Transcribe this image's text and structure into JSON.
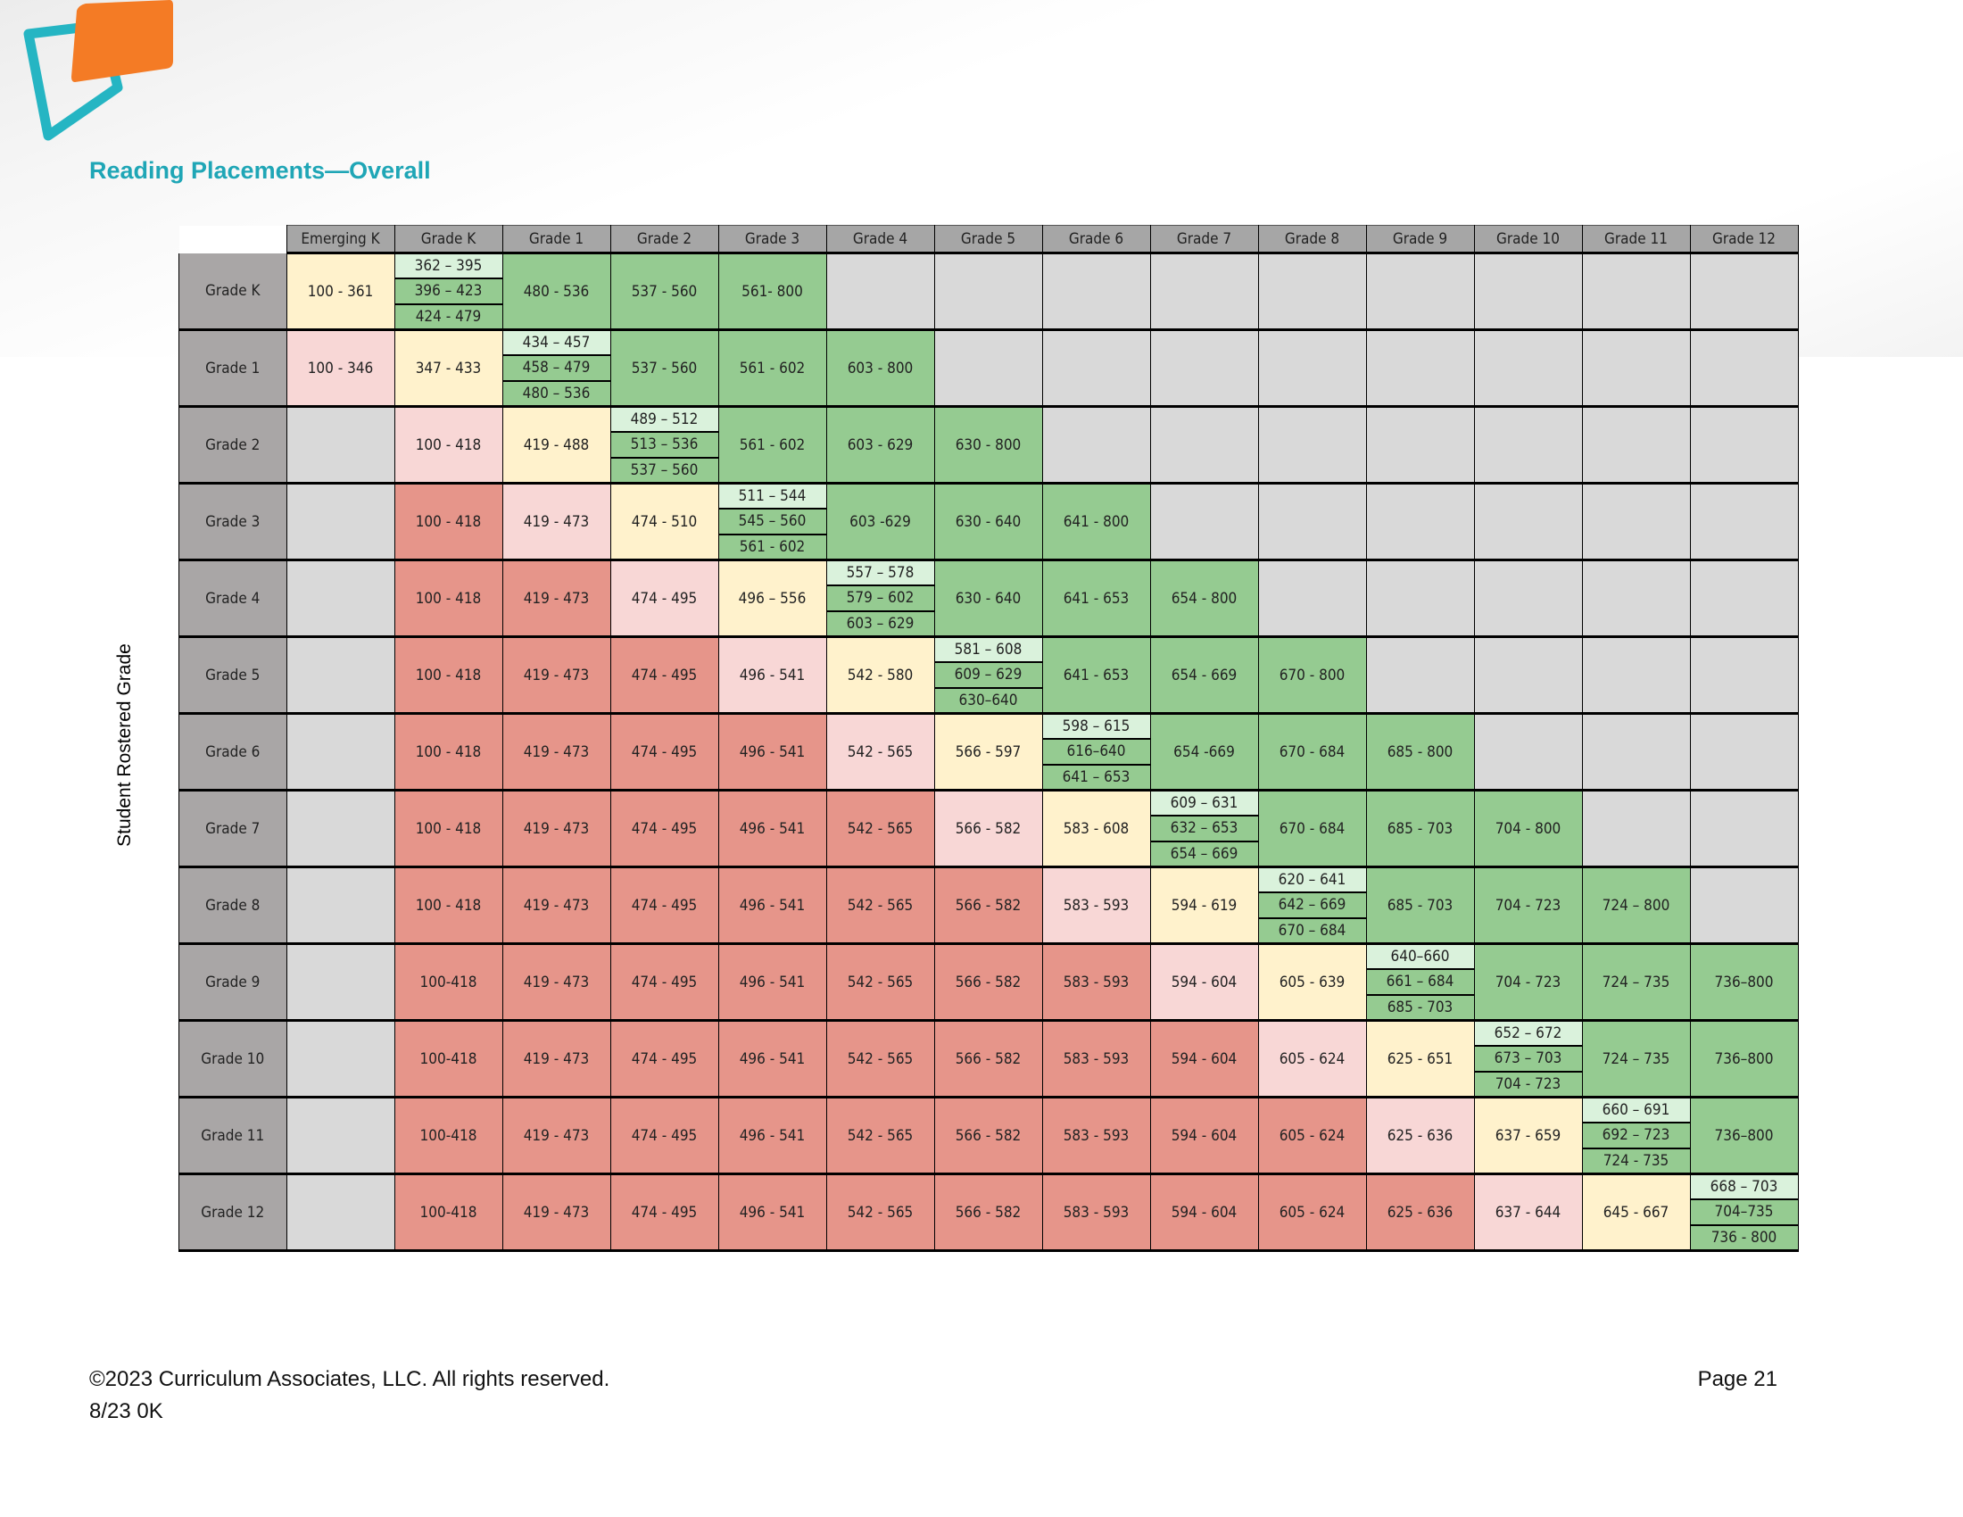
{
  "title": "Reading Placements—Overall",
  "y_axis_label": "Student Rostered Grade",
  "footer": {
    "copyright": "©2023 Curriculum Associates, LLC. All rights reserved.",
    "code": "8/23 0K",
    "page": "Page 21"
  },
  "logo": {
    "icon": "curriculum-associates-logo",
    "colors": {
      "teal": "#25b5c3",
      "orange": "#f47b25"
    }
  },
  "colors": {
    "r": "#e6958a",
    "p": "#f8d7d6",
    "y": "#fff2cc",
    "g": "#95cb91",
    "x": "#d9d9d9",
    "light_green": "#daf2dc",
    "header": "#a6a6a6"
  },
  "columns": [
    "Emerging K",
    "Grade K",
    "Grade 1",
    "Grade 2",
    "Grade 3",
    "Grade 4",
    "Grade 5",
    "Grade 6",
    "Grade 7",
    "Grade 8",
    "Grade 9",
    "Grade 10",
    "Grade 11",
    "Grade 12"
  ],
  "rows": [
    {
      "label": "Grade K",
      "cells": [
        [
          "y",
          "100 - 361"
        ],
        [
          "s",
          [
            "362 – 395",
            "396 – 423",
            "424 - 479"
          ]
        ],
        [
          "g",
          "480 - 536"
        ],
        [
          "g",
          "537 - 560"
        ],
        [
          "g",
          "561- 800"
        ],
        [
          "x"
        ],
        [
          "x"
        ],
        [
          "x"
        ],
        [
          "x"
        ],
        [
          "x"
        ],
        [
          "x"
        ],
        [
          "x"
        ],
        [
          "x"
        ],
        [
          "x"
        ]
      ]
    },
    {
      "label": "Grade 1",
      "cells": [
        [
          "p",
          "100 - 346"
        ],
        [
          "y",
          "347 - 433"
        ],
        [
          "s",
          [
            "434 – 457",
            "458 – 479",
            "480 – 536"
          ]
        ],
        [
          "g",
          "537 - 560"
        ],
        [
          "g",
          "561 - 602"
        ],
        [
          "g",
          "603 - 800"
        ],
        [
          "x"
        ],
        [
          "x"
        ],
        [
          "x"
        ],
        [
          "x"
        ],
        [
          "x"
        ],
        [
          "x"
        ],
        [
          "x"
        ],
        [
          "x"
        ]
      ]
    },
    {
      "label": "Grade 2",
      "cells": [
        [
          "x"
        ],
        [
          "p",
          "100 - 418"
        ],
        [
          "y",
          "419 - 488"
        ],
        [
          "s",
          [
            "489 – 512",
            "513 – 536",
            "537 – 560"
          ]
        ],
        [
          "g",
          "561 - 602"
        ],
        [
          "g",
          "603 - 629"
        ],
        [
          "g",
          "630 - 800"
        ],
        [
          "x"
        ],
        [
          "x"
        ],
        [
          "x"
        ],
        [
          "x"
        ],
        [
          "x"
        ],
        [
          "x"
        ],
        [
          "x"
        ]
      ]
    },
    {
      "label": "Grade 3",
      "cells": [
        [
          "x"
        ],
        [
          "r",
          "100 - 418"
        ],
        [
          "p",
          "419 - 473"
        ],
        [
          "y",
          "474 - 510"
        ],
        [
          "s",
          [
            "511 – 544",
            "545 – 560",
            "561 - 602"
          ]
        ],
        [
          "g",
          "603 -629"
        ],
        [
          "g",
          "630 - 640"
        ],
        [
          "g",
          "641 - 800"
        ],
        [
          "x"
        ],
        [
          "x"
        ],
        [
          "x"
        ],
        [
          "x"
        ],
        [
          "x"
        ],
        [
          "x"
        ]
      ]
    },
    {
      "label": "Grade 4",
      "cells": [
        [
          "x"
        ],
        [
          "r",
          "100 - 418"
        ],
        [
          "r",
          "419 - 473"
        ],
        [
          "p",
          "474 - 495"
        ],
        [
          "y",
          "496 – 556"
        ],
        [
          "s",
          [
            "557 – 578",
            "579 – 602",
            "603 – 629"
          ]
        ],
        [
          "g",
          "630 - 640"
        ],
        [
          "g",
          "641 - 653"
        ],
        [
          "g",
          "654 - 800"
        ],
        [
          "x"
        ],
        [
          "x"
        ],
        [
          "x"
        ],
        [
          "x"
        ],
        [
          "x"
        ]
      ]
    },
    {
      "label": "Grade 5",
      "cells": [
        [
          "x"
        ],
        [
          "r",
          "100 - 418"
        ],
        [
          "r",
          "419 - 473"
        ],
        [
          "r",
          "474 - 495"
        ],
        [
          "p",
          "496 - 541"
        ],
        [
          "y",
          "542 - 580"
        ],
        [
          "s",
          [
            "581 – 608",
            "609 – 629",
            "630–640"
          ]
        ],
        [
          "g",
          "641 - 653"
        ],
        [
          "g",
          "654 - 669"
        ],
        [
          "g",
          "670 - 800"
        ],
        [
          "x"
        ],
        [
          "x"
        ],
        [
          "x"
        ],
        [
          "x"
        ]
      ]
    },
    {
      "label": "Grade 6",
      "cells": [
        [
          "x"
        ],
        [
          "r",
          "100 - 418"
        ],
        [
          "r",
          "419 - 473"
        ],
        [
          "r",
          "474 - 495"
        ],
        [
          "r",
          "496 - 541"
        ],
        [
          "p",
          "542 - 565"
        ],
        [
          "y",
          "566 - 597"
        ],
        [
          "s",
          [
            "598 – 615",
            "616–640",
            "641 – 653"
          ]
        ],
        [
          "g",
          "654 -669"
        ],
        [
          "g",
          "670 - 684"
        ],
        [
          "g",
          "685 - 800"
        ],
        [
          "x"
        ],
        [
          "x"
        ],
        [
          "x"
        ]
      ]
    },
    {
      "label": "Grade 7",
      "cells": [
        [
          "x"
        ],
        [
          "r",
          "100 - 418"
        ],
        [
          "r",
          "419 - 473"
        ],
        [
          "r",
          "474 - 495"
        ],
        [
          "r",
          "496 - 541"
        ],
        [
          "r",
          "542 - 565"
        ],
        [
          "p",
          "566 - 582"
        ],
        [
          "y",
          "583 - 608"
        ],
        [
          "s",
          [
            "609 – 631",
            "632 – 653",
            "654 – 669"
          ]
        ],
        [
          "g",
          "670 - 684"
        ],
        [
          "g",
          "685 - 703"
        ],
        [
          "g",
          "704 - 800"
        ],
        [
          "x"
        ],
        [
          "x"
        ]
      ]
    },
    {
      "label": "Grade 8",
      "cells": [
        [
          "x"
        ],
        [
          "r",
          "100 - 418"
        ],
        [
          "r",
          "419 - 473"
        ],
        [
          "r",
          "474 - 495"
        ],
        [
          "r",
          "496 - 541"
        ],
        [
          "r",
          "542 - 565"
        ],
        [
          "r",
          "566 - 582"
        ],
        [
          "p",
          "583 - 593"
        ],
        [
          "y",
          "594 - 619"
        ],
        [
          "s",
          [
            "620 – 641",
            "642 – 669",
            "670 – 684"
          ]
        ],
        [
          "g",
          "685 - 703"
        ],
        [
          "g",
          "704 - 723"
        ],
        [
          "g",
          "724 – 800"
        ],
        [
          "x"
        ]
      ]
    },
    {
      "label": "Grade 9",
      "cells": [
        [
          "x"
        ],
        [
          "r",
          "100-418"
        ],
        [
          "r",
          "419 - 473"
        ],
        [
          "r",
          "474 - 495"
        ],
        [
          "r",
          "496 - 541"
        ],
        [
          "r",
          "542 - 565"
        ],
        [
          "r",
          "566 - 582"
        ],
        [
          "r",
          "583 - 593"
        ],
        [
          "p",
          "594 - 604"
        ],
        [
          "y",
          "605 - 639"
        ],
        [
          "s",
          [
            "640–660",
            "661 – 684",
            "685 - 703"
          ]
        ],
        [
          "g",
          "704 - 723"
        ],
        [
          "g",
          "724 – 735"
        ],
        [
          "g",
          "736–800"
        ]
      ]
    },
    {
      "label": "Grade 10",
      "cells": [
        [
          "x"
        ],
        [
          "r",
          "100-418"
        ],
        [
          "r",
          "419 - 473"
        ],
        [
          "r",
          "474 - 495"
        ],
        [
          "r",
          "496 - 541"
        ],
        [
          "r",
          "542 - 565"
        ],
        [
          "r",
          "566 - 582"
        ],
        [
          "r",
          "583 - 593"
        ],
        [
          "r",
          "594 - 604"
        ],
        [
          "p",
          "605 - 624"
        ],
        [
          "y",
          "625 - 651"
        ],
        [
          "s",
          [
            "652 – 672",
            "673 – 703",
            "704 - 723"
          ]
        ],
        [
          "g",
          "724 – 735"
        ],
        [
          "g",
          "736–800"
        ]
      ]
    },
    {
      "label": "Grade 11",
      "cells": [
        [
          "x"
        ],
        [
          "r",
          "100-418"
        ],
        [
          "r",
          "419 - 473"
        ],
        [
          "r",
          "474 - 495"
        ],
        [
          "r",
          "496 - 541"
        ],
        [
          "r",
          "542 - 565"
        ],
        [
          "r",
          "566 - 582"
        ],
        [
          "r",
          "583 - 593"
        ],
        [
          "r",
          "594 - 604"
        ],
        [
          "r",
          "605 - 624"
        ],
        [
          "p",
          "625 - 636"
        ],
        [
          "y",
          "637 - 659"
        ],
        [
          "s",
          [
            "660 – 691",
            "692 – 723",
            "724 - 735"
          ]
        ],
        [
          "g",
          "736–800"
        ]
      ]
    },
    {
      "label": "Grade 12",
      "cells": [
        [
          "x"
        ],
        [
          "r",
          "100-418"
        ],
        [
          "r",
          "419 - 473"
        ],
        [
          "r",
          "474 - 495"
        ],
        [
          "r",
          "496 - 541"
        ],
        [
          "r",
          "542 - 565"
        ],
        [
          "r",
          "566 - 582"
        ],
        [
          "r",
          "583 - 593"
        ],
        [
          "r",
          "594 - 604"
        ],
        [
          "r",
          "605 - 624"
        ],
        [
          "r",
          "625 - 636"
        ],
        [
          "p",
          "637 - 644"
        ],
        [
          "y",
          "645 - 667"
        ],
        [
          "s",
          [
            "668 – 703",
            "704–735",
            "736 - 800"
          ]
        ]
      ]
    }
  ]
}
